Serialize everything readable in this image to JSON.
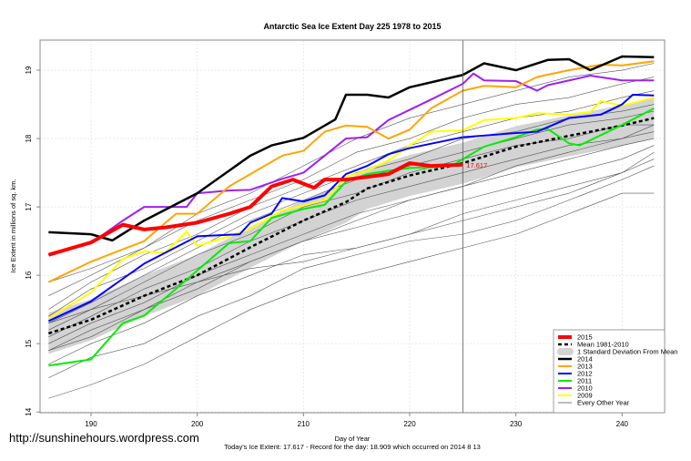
{
  "chart_data": {
    "type": "line",
    "title": "Antarctic Sea Ice Extent Day 225 1978 to 2015",
    "xlabel": "Day of Year",
    "ylabel": "Ice Extent in millions of sq. km.",
    "subtitle": "Today's Ice Extent: 17.617  - Record for the day: 18.909 which occurred on 2014 8 13",
    "xlim": [
      185.2,
      244.0
    ],
    "ylim": [
      13.99,
      19.44
    ],
    "xticks": [
      190,
      200,
      210,
      220,
      230,
      240
    ],
    "yticks": [
      14,
      15,
      16,
      17,
      18,
      19
    ],
    "grid": true,
    "legend_position": "bottom-right",
    "marker_day": 225,
    "current_value_label": "17.617",
    "sd_band": {
      "name": "1 Standard Deviation From Mean",
      "color": "#d3d3d3",
      "half_width": 0.3
    },
    "series": [
      {
        "name": "Every Other Year",
        "color": "#555555",
        "width": 0.6,
        "group": "other",
        "lines": [
          {
            "x": [
              186,
              190,
              195,
              200,
              205,
              210,
              215,
              220,
              225,
              230,
              235,
              240,
              243
            ],
            "y": [
              14.2,
              14.4,
              14.7,
              15.1,
              15.5,
              15.8,
              16.0,
              16.2,
              16.4,
              16.6,
              16.9,
              17.2,
              17.2
            ]
          },
          {
            "x": [
              186,
              190,
              195,
              200,
              205,
              210,
              215,
              220,
              225,
              230,
              235,
              240,
              243
            ],
            "y": [
              14.5,
              14.8,
              15.0,
              15.4,
              15.7,
              16.1,
              16.3,
              16.5,
              16.6,
              16.8,
              17.1,
              17.4,
              17.6
            ]
          },
          {
            "x": [
              186,
              190,
              195,
              200,
              205,
              210,
              215,
              220,
              225,
              230,
              235,
              240,
              243
            ],
            "y": [
              14.7,
              15.0,
              15.3,
              15.7,
              16.0,
              16.3,
              16.4,
              16.6,
              16.8,
              17.0,
              17.2,
              17.5,
              17.8
            ]
          },
          {
            "x": [
              186,
              190,
              195,
              200,
              205,
              210,
              215,
              220,
              225,
              230,
              235,
              240,
              243
            ],
            "y": [
              14.9,
              15.1,
              15.5,
              15.8,
              16.2,
              16.5,
              16.7,
              16.9,
              17.1,
              17.3,
              17.5,
              17.7,
              17.9
            ]
          },
          {
            "x": [
              186,
              190,
              195,
              200,
              205,
              210,
              215,
              220,
              225,
              230,
              235,
              240,
              243
            ],
            "y": [
              15.0,
              15.3,
              15.6,
              16.0,
              16.3,
              16.6,
              16.9,
              17.1,
              17.3,
              17.5,
              17.7,
              17.9,
              18.0
            ]
          },
          {
            "x": [
              186,
              190,
              195,
              200,
              205,
              210,
              215,
              220,
              225,
              230,
              235,
              240,
              243
            ],
            "y": [
              15.1,
              15.4,
              15.8,
              16.1,
              16.5,
              16.8,
              17.1,
              17.3,
              17.5,
              17.7,
              17.9,
              18.0,
              18.1
            ]
          },
          {
            "x": [
              186,
              190,
              195,
              200,
              205,
              210,
              215,
              220,
              225,
              230,
              235,
              240,
              243
            ],
            "y": [
              15.2,
              15.5,
              15.9,
              16.3,
              16.6,
              17.0,
              17.2,
              17.5,
              17.7,
              17.9,
              18.0,
              18.2,
              18.2
            ]
          },
          {
            "x": [
              186,
              190,
              195,
              200,
              205,
              210,
              215,
              220,
              225,
              230,
              235,
              240,
              243
            ],
            "y": [
              15.3,
              15.6,
              16.0,
              16.4,
              16.8,
              17.1,
              17.4,
              17.6,
              17.8,
              18.0,
              18.2,
              18.3,
              18.4
            ]
          },
          {
            "x": [
              186,
              190,
              195,
              200,
              205,
              210,
              215,
              220,
              225,
              230,
              235,
              240,
              243
            ],
            "y": [
              15.4,
              15.8,
              16.1,
              16.5,
              16.9,
              17.2,
              17.5,
              17.7,
              18.0,
              18.1,
              18.3,
              18.4,
              18.5
            ]
          },
          {
            "x": [
              186,
              190,
              195,
              200,
              205,
              210,
              215,
              220,
              225,
              230,
              235,
              240,
              243
            ],
            "y": [
              15.5,
              15.9,
              16.3,
              16.6,
              17.0,
              17.3,
              17.6,
              17.9,
              18.1,
              18.3,
              18.4,
              18.6,
              18.7
            ]
          },
          {
            "x": [
              186,
              190,
              195,
              200,
              205,
              210,
              215,
              220,
              225,
              230,
              235,
              240,
              243
            ],
            "y": [
              15.7,
              16.0,
              16.4,
              16.8,
              17.1,
              17.4,
              17.8,
              18.0,
              18.3,
              18.5,
              18.6,
              18.8,
              18.9
            ]
          },
          {
            "x": [
              186,
              190,
              195,
              200,
              205,
              210,
              215,
              220,
              225,
              230,
              235,
              240,
              243
            ],
            "y": [
              15.9,
              16.1,
              16.4,
              16.9,
              17.2,
              17.6,
              18.0,
              18.3,
              18.5,
              18.7,
              18.9,
              19.0,
              19.1
            ]
          },
          {
            "x": [
              186,
              190,
              195,
              200,
              205,
              210,
              215,
              220,
              225,
              230,
              235,
              240,
              243
            ],
            "y": [
              14.9,
              15.2,
              15.5,
              15.9,
              16.1,
              16.2,
              16.4,
              16.6,
              16.9,
              17.1,
              17.3,
              17.5,
              17.7
            ]
          },
          {
            "x": [
              186,
              190,
              195,
              200,
              205,
              210,
              215,
              220,
              225,
              230,
              235,
              240,
              243
            ],
            "y": [
              15.3,
              15.5,
              15.7,
              15.9,
              16.2,
              16.5,
              16.8,
              17.1,
              17.3,
              17.6,
              17.8,
              18.0,
              18.2
            ]
          }
        ]
      },
      {
        "name": "Mean 1981-2010",
        "color": "#000000",
        "width": 2.5,
        "dash": "4,3",
        "group": "mean",
        "x": [
          186,
          190,
          195,
          200,
          205,
          210,
          214,
          216,
          220,
          225,
          230,
          235,
          240,
          243
        ],
        "y": [
          15.15,
          15.35,
          15.7,
          16.0,
          16.41,
          16.8,
          17.07,
          17.27,
          17.46,
          17.64,
          17.88,
          18.04,
          18.19,
          18.3
        ]
      },
      {
        "name": "2009",
        "color": "#ffff00",
        "width": 2,
        "x": [
          186,
          190,
          193,
          195,
          197,
          199,
          200,
          203,
          205,
          208,
          210,
          212,
          214,
          216,
          218,
          220,
          222,
          225,
          227,
          230,
          232,
          235,
          237,
          238,
          240,
          241,
          243
        ],
        "y": [
          15.37,
          15.75,
          16.24,
          16.35,
          16.33,
          16.64,
          16.43,
          16.57,
          16.68,
          16.95,
          17.02,
          17.1,
          17.44,
          17.53,
          17.68,
          17.9,
          18.1,
          18.12,
          18.27,
          18.3,
          18.37,
          18.35,
          18.39,
          18.55,
          18.48,
          18.52,
          18.6
        ]
      },
      {
        "name": "2010",
        "color": "#a020f0",
        "width": 2,
        "x": [
          186,
          190,
          193,
          195,
          199,
          200,
          203,
          205,
          208,
          210,
          212,
          214,
          216,
          218,
          220,
          222,
          225,
          226,
          227,
          230,
          232,
          233,
          237,
          240,
          243
        ],
        "y": [
          16.3,
          16.47,
          16.8,
          17.0,
          17.0,
          17.2,
          17.24,
          17.25,
          17.41,
          17.5,
          17.75,
          18.0,
          18.02,
          18.27,
          18.42,
          18.57,
          18.8,
          18.95,
          18.85,
          18.84,
          18.7,
          18.78,
          18.92,
          18.85,
          18.85
        ]
      },
      {
        "name": "2011",
        "color": "#00ee00",
        "width": 2,
        "x": [
          186,
          190,
          193,
          195,
          198,
          200,
          203,
          205,
          207,
          210,
          212,
          214,
          216,
          218,
          220,
          222,
          224,
          225,
          227,
          230,
          232,
          233,
          235,
          236,
          240,
          243
        ],
        "y": [
          14.68,
          14.77,
          15.3,
          15.41,
          15.8,
          16.07,
          16.47,
          16.5,
          16.84,
          16.97,
          17.03,
          17.37,
          17.48,
          17.53,
          17.57,
          17.58,
          17.6,
          17.7,
          17.88,
          18.02,
          18.13,
          18.14,
          17.93,
          17.9,
          18.2,
          18.44
        ]
      },
      {
        "name": "2012",
        "color": "#0000ff",
        "width": 2,
        "x": [
          186,
          190,
          195,
          200,
          204,
          205,
          207,
          208,
          210,
          212,
          214,
          216,
          218,
          220,
          225,
          230,
          232,
          235,
          238,
          240,
          241,
          243
        ],
        "y": [
          15.33,
          15.62,
          16.17,
          16.57,
          16.6,
          16.77,
          16.9,
          17.13,
          17.08,
          17.17,
          17.48,
          17.6,
          17.77,
          17.86,
          18.02,
          18.08,
          18.1,
          18.3,
          18.35,
          18.5,
          18.64,
          18.63
        ]
      },
      {
        "name": "2013",
        "color": "#ffa500",
        "width": 2,
        "x": [
          186,
          190,
          195,
          198,
          200,
          203,
          205,
          208,
          210,
          212,
          214,
          216,
          218,
          220,
          222,
          225,
          227,
          230,
          232,
          235,
          238,
          240,
          243
        ],
        "y": [
          15.9,
          16.2,
          16.5,
          16.9,
          16.9,
          17.3,
          17.48,
          17.75,
          17.82,
          18.1,
          18.19,
          18.17,
          18.0,
          18.13,
          18.44,
          18.7,
          18.77,
          18.75,
          18.9,
          19.0,
          19.08,
          19.07,
          19.13
        ]
      },
      {
        "name": "2014",
        "color": "#000000",
        "width": 2.5,
        "x": [
          186,
          190,
          192,
          195,
          200,
          205,
          207,
          210,
          213,
          214,
          216,
          218,
          220,
          225,
          227,
          230,
          233,
          235,
          237,
          240,
          243
        ],
        "y": [
          16.63,
          16.6,
          16.51,
          16.8,
          17.2,
          17.75,
          17.9,
          18.01,
          18.28,
          18.64,
          18.64,
          18.6,
          18.75,
          18.93,
          19.1,
          19.0,
          19.15,
          19.16,
          19.0,
          19.2,
          19.19
        ]
      },
      {
        "name": "2015",
        "color": "#ff0000",
        "width": 4,
        "x": [
          186,
          190,
          193,
          195,
          197,
          200,
          203,
          205,
          207,
          209,
          211,
          212,
          214,
          216,
          218,
          220,
          222,
          225
        ],
        "y": [
          16.3,
          16.48,
          16.74,
          16.67,
          16.7,
          16.77,
          16.9,
          17.0,
          17.3,
          17.4,
          17.28,
          17.4,
          17.4,
          17.44,
          17.48,
          17.64,
          17.6,
          17.617
        ]
      }
    ],
    "legend": [
      {
        "label": "2015",
        "color": "#ff0000",
        "kind": "line",
        "width": 4
      },
      {
        "label": "Mean 1981-2010",
        "color": "#000000",
        "kind": "dash",
        "width": 2.5
      },
      {
        "label": "1 Standard Deviation From Mean",
        "color": "#d3d3d3",
        "kind": "box",
        "width": 8
      },
      {
        "label": "2014",
        "color": "#000000",
        "kind": "line",
        "width": 2.5
      },
      {
        "label": "2013",
        "color": "#ffa500",
        "kind": "line",
        "width": 2
      },
      {
        "label": "2012",
        "color": "#0000ff",
        "kind": "line",
        "width": 2
      },
      {
        "label": "2011",
        "color": "#00ee00",
        "kind": "line",
        "width": 2
      },
      {
        "label": "2010",
        "color": "#a020f0",
        "kind": "line",
        "width": 2
      },
      {
        "label": "2009",
        "color": "#ffff00",
        "kind": "line",
        "width": 2
      },
      {
        "label": "Every Other Year",
        "color": "#555555",
        "kind": "line",
        "width": 0.8
      }
    ]
  },
  "watermark": "http://sunshinehours.wordpress.com"
}
